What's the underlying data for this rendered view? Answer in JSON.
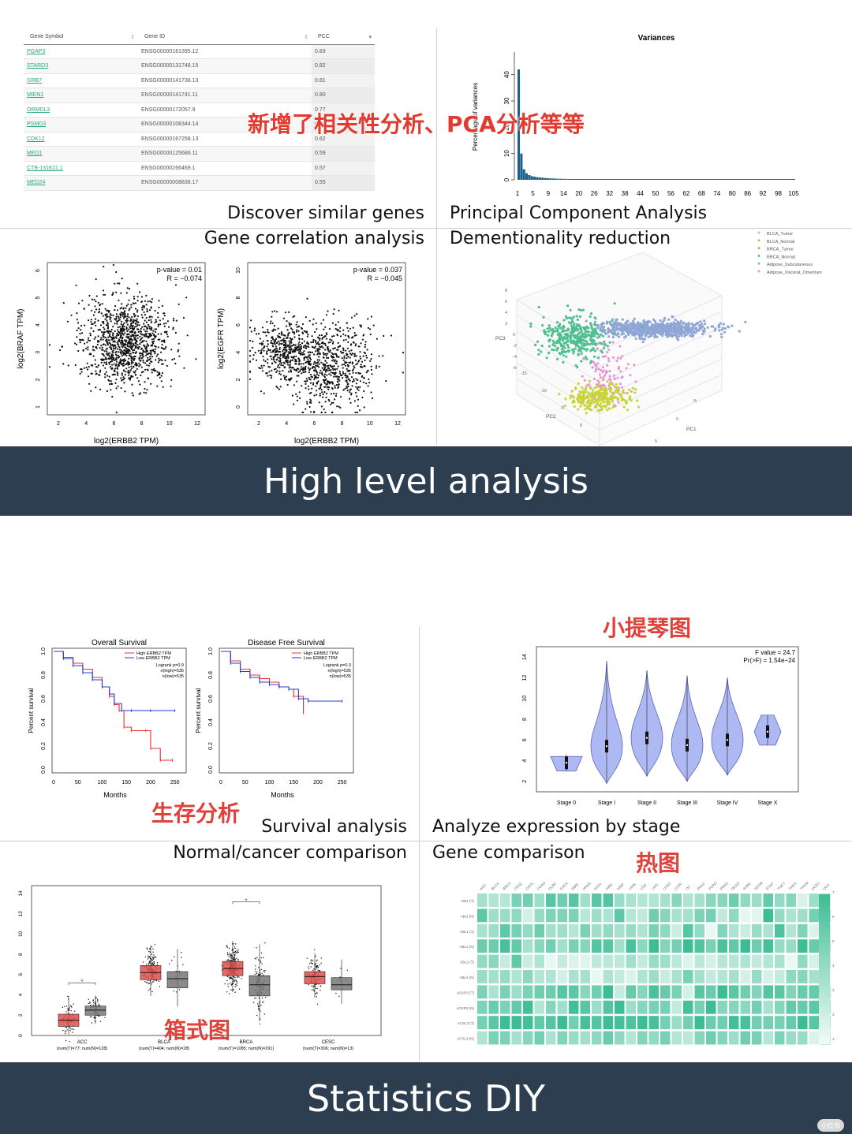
{
  "overlay_title": "新增了相关性分析、PCA分析等等",
  "gene_table": {
    "headers": [
      "Gene Symbol",
      "Gene ID",
      "PCC"
    ],
    "rows": [
      [
        "PGAP3",
        "ENSG00000161395.12",
        "0.83"
      ],
      [
        "STARD3",
        "ENSG00000131748.15",
        "0.82"
      ],
      [
        "GRB7",
        "ENSG00000141738.13",
        "0.81"
      ],
      [
        "MIEN1",
        "ENSG00000141741.11",
        "0.80"
      ],
      [
        "ORMDL3",
        "ENSG00000172057.9",
        "0.77"
      ],
      [
        "PSMD3",
        "ENSG00000108344.14",
        "0.67"
      ],
      [
        "CDK12",
        "ENSG00000167258.13",
        "0.62"
      ],
      [
        "MED1",
        "ENSG00000125686.11",
        "0.59"
      ],
      [
        "CTB-131K11.1",
        "ENSG00000266469.1",
        "0.57"
      ],
      [
        "MED24",
        "ENSG00000008838.17",
        "0.55"
      ]
    ]
  },
  "captions": {
    "discover": "Discover similar genes",
    "correlation": "Gene correlation analysis",
    "pca": "Principal Component Analysis",
    "dim": "Dementionality reduction",
    "survival": "Survival analysis",
    "normal_cancer": "Normal/cancer comparison",
    "stage": "Analyze expression by stage",
    "gene_comp": "Gene comparison"
  },
  "banners": {
    "high": "High level analysis",
    "stats": "Statistics DIY"
  },
  "annotations": {
    "survival_cn": "生存分析",
    "violin_cn": "小提琴图",
    "box_cn": "箱式图",
    "heat_cn": "热图"
  },
  "watermark": "小红书",
  "chart_data": [
    {
      "type": "bar",
      "title": "Variances",
      "ylabel": "Percentage of variances",
      "xtick_labels": [
        "1",
        "5",
        "9",
        "14",
        "20",
        "26",
        "32",
        "38",
        "44",
        "50",
        "56",
        "62",
        "68",
        "74",
        "80",
        "86",
        "92",
        "98",
        "105"
      ],
      "ytick_labels": [
        "0",
        "10",
        "20",
        "30",
        "40"
      ],
      "ylim": [
        0,
        45
      ],
      "values": [
        42,
        10,
        4,
        2.5,
        1.8,
        1.4,
        1.2,
        1.0,
        0.9,
        0.8,
        0.7,
        0.6,
        0.55,
        0.5,
        0.45,
        0.4,
        0.38,
        0.35,
        0.33,
        0.3
      ]
    },
    {
      "type": "scatter",
      "xlabel": "log2(ERBB2 TPM)",
      "ylabel": "log2(BRAF TPM)",
      "annotation": [
        "p-value = 0.01",
        "R = −0.074"
      ],
      "xticks": [
        "2",
        "4",
        "6",
        "8",
        "10",
        "12"
      ],
      "yticks": [
        "1",
        "2",
        "3",
        "4",
        "5",
        "6"
      ]
    },
    {
      "type": "scatter",
      "xlabel": "log2(ERBB2 TPM)",
      "ylabel": "log2(EGFR TPM)",
      "annotation": [
        "p-value = 0.037",
        "R = −0.045"
      ],
      "xticks": [
        "2",
        "4",
        "6",
        "8",
        "10",
        "12"
      ],
      "yticks": [
        "0",
        "2",
        "4",
        "6",
        "8",
        "10"
      ]
    },
    {
      "type": "scatter",
      "legend": [
        {
          "name": "BLCA_Tumor",
          "color": "#f4a6a6"
        },
        {
          "name": "BLCA_Normal",
          "color": "#c9b36b"
        },
        {
          "name": "BRCA_Tumor",
          "color": "#8fc46b"
        },
        {
          "name": "BRCA_Normal",
          "color": "#4fbf8f"
        },
        {
          "name": "Adipose_Subcutaneous",
          "color": "#7fb3e0"
        },
        {
          "name": "Adipose_Visceral_Omentum",
          "color": "#e98fd6"
        }
      ],
      "axis_labels": [
        "PC1",
        "PC2",
        "PC3"
      ],
      "pc3_ticks": [
        "8",
        "6",
        "4",
        "2",
        "0",
        "-2",
        "-4",
        "-6"
      ],
      "pc2_ticks": [
        "-15",
        "-10",
        "-5",
        "0"
      ],
      "pc1_ticks": [
        "0",
        "-5",
        "5"
      ],
      "clusters": [
        {
          "color": "#8fa6d6"
        },
        {
          "color": "#4fbf8f"
        },
        {
          "color": "#e98fd6"
        },
        {
          "color": "#c9d43a"
        }
      ]
    },
    {
      "type": "line",
      "title": "Overall Survival",
      "xlabel": "Months",
      "ylabel": "Percent survival",
      "xticks": [
        "0",
        "50",
        "100",
        "150",
        "200",
        "250"
      ],
      "yticks": [
        "0.0",
        "0.2",
        "0.4",
        "0.6",
        "0.8",
        "1.0"
      ],
      "legend": [
        "High ERBB2 TPM",
        "Low ERBB2 TPM"
      ],
      "stats": [
        "Logrank p=0.9",
        "n(high)=535",
        "n(low)=535"
      ],
      "series": [
        {
          "name": "High ERBB2 TPM",
          "color": "#e83030",
          "x": [
            0,
            20,
            40,
            60,
            80,
            100,
            115,
            125,
            135,
            145,
            160,
            190,
            200,
            220,
            245
          ],
          "y": [
            1.0,
            0.95,
            0.9,
            0.85,
            0.78,
            0.7,
            0.62,
            0.55,
            0.5,
            0.36,
            0.33,
            0.33,
            0.18,
            0.08,
            0.08
          ]
        },
        {
          "name": "Low ERBB2 TPM",
          "color": "#2a3bd1",
          "x": [
            0,
            20,
            40,
            60,
            80,
            100,
            115,
            125,
            140,
            160,
            200,
            250
          ],
          "y": [
            1.0,
            0.94,
            0.88,
            0.82,
            0.76,
            0.7,
            0.64,
            0.56,
            0.5,
            0.5,
            0.5,
            0.5
          ]
        }
      ]
    },
    {
      "type": "line",
      "title": "Disease Free Survival",
      "xlabel": "Months",
      "ylabel": "Percent survival",
      "xticks": [
        "0",
        "50",
        "100",
        "150",
        "200",
        "250"
      ],
      "yticks": [
        "0.0",
        "0.2",
        "0.4",
        "0.6",
        "0.8",
        "1.0"
      ],
      "legend": [
        "High ERBB2 TPM",
        "Low ERBB2 TPM"
      ],
      "stats": [
        "Logrank p=0.3",
        "n(high)=535",
        "n(low)=535"
      ],
      "series": [
        {
          "name": "High ERBB2 TPM",
          "color": "#e83030",
          "x": [
            0,
            20,
            40,
            60,
            80,
            100,
            120,
            140,
            150,
            170
          ],
          "y": [
            1.0,
            0.92,
            0.85,
            0.8,
            0.77,
            0.74,
            0.7,
            0.68,
            0.62,
            0.48
          ]
        },
        {
          "name": "Low ERBB2 TPM",
          "color": "#2a3bd1",
          "x": [
            0,
            20,
            40,
            60,
            80,
            100,
            120,
            140,
            160,
            180,
            250
          ],
          "y": [
            1.0,
            0.9,
            0.83,
            0.78,
            0.74,
            0.72,
            0.7,
            0.68,
            0.6,
            0.58,
            0.58
          ]
        }
      ]
    },
    {
      "type": "violin",
      "annotation": [
        "F value = 24.7",
        "Pr(>F) = 1.54e−24"
      ],
      "categories": [
        "Stage 0",
        "Stage I",
        "Stage II",
        "Stage III",
        "Stage IV",
        "Stage X"
      ],
      "yticks": [
        "2",
        "4",
        "6",
        "8",
        "10",
        "12",
        "14"
      ],
      "ylim": [
        1,
        15
      ],
      "medians": [
        3.8,
        5.4,
        6.2,
        5.5,
        6.0,
        6.8
      ],
      "ranges": [
        [
          3.0,
          4.6
        ],
        [
          1.8,
          13.6
        ],
        [
          2.5,
          12.7
        ],
        [
          2.0,
          12.2
        ],
        [
          2.6,
          12.0
        ],
        [
          5.5,
          8.4
        ]
      ],
      "color": "#aeb9f3"
    },
    {
      "type": "box",
      "categories": [
        "ACC",
        "BLCA",
        "BRCA",
        "CESC"
      ],
      "category_sublabels": [
        "(num(T)=77; num(N)=128)",
        "(num(T)=404; num(N)=28)",
        "(num(T)=1085; num(N)=291)",
        "(num(T)=306; num(N)=13)"
      ],
      "yticks": [
        "0",
        "2",
        "4",
        "6",
        "8",
        "10",
        "12",
        "14"
      ],
      "ylim": [
        0,
        14
      ],
      "series": [
        {
          "name": "Tumor",
          "color": "#e04f4f",
          "boxes": [
            [
              1.2,
              1.5,
              1.8,
              2.2
            ],
            [
              5.8,
              6.2,
              6.6,
              7.0
            ],
            [
              6.2,
              6.6,
              7.0,
              7.4
            ],
            [
              5.4,
              5.8,
              6.0,
              6.4
            ]
          ]
        },
        {
          "name": "Normal",
          "color": "#777777",
          "boxes": [
            [
              2.3,
              2.5,
              2.6,
              2.8
            ],
            [
              5.0,
              5.6,
              6.0,
              6.4
            ],
            [
              4.2,
              5.0,
              5.6,
              6.2
            ],
            [
              4.8,
              5.0,
              5.4,
              5.8
            ]
          ]
        }
      ],
      "significant": [
        "ACC",
        "BRCA"
      ]
    },
    {
      "type": "heatmap",
      "columns": [
        "ACC",
        "BLCA",
        "BRCA",
        "CESC",
        "CHOL",
        "COAD",
        "DLBC",
        "ESCA",
        "GBM",
        "HNSC",
        "KICH",
        "KIRC",
        "KIRP",
        "LAML",
        "LGG",
        "LIHC",
        "LUAD",
        "LUSC",
        "OV",
        "PAAD",
        "PCPG",
        "PRAD",
        "READ",
        "SARC",
        "SKCM",
        "STAD",
        "TGCT",
        "THCA",
        "THYM",
        "UCEC",
        "UCS"
      ],
      "rows": [
        "ABI1 (T)",
        "ABI1 (N)",
        "ABL1 (T)",
        "ABL1 (N)",
        "ABL2 (T)",
        "ABL2 (N)",
        "ACKR3 (T)",
        "ACKR3 (N)",
        "ACSL3 (T)",
        "ACSL3 (N)"
      ],
      "colorbar_ticks": [
        "1",
        "2",
        "3",
        "4",
        "5",
        "6",
        "7"
      ],
      "color_low": "#f2fbf7",
      "color_high": "#3dbd94"
    }
  ]
}
